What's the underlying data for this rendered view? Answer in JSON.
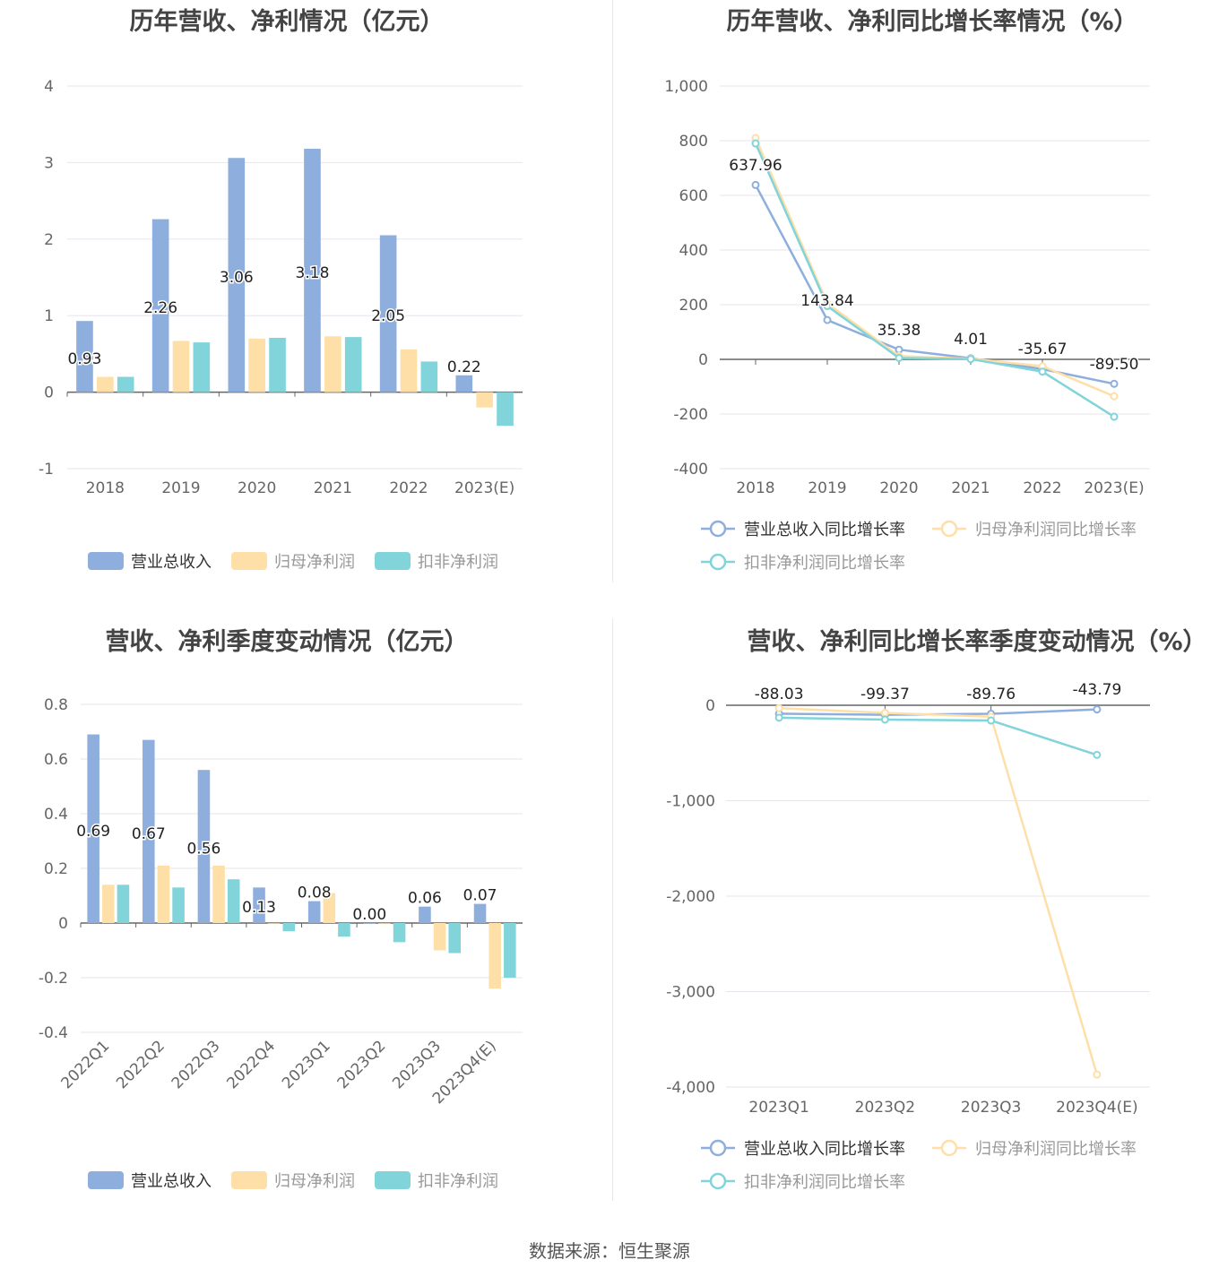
{
  "footer": {
    "source": "数据来源：恒生聚源"
  },
  "chart_data": [
    {
      "type": "bar",
      "title": "历年营收、净利情况（亿元）",
      "categories": [
        "2018",
        "2019",
        "2020",
        "2021",
        "2022",
        "2023(E)"
      ],
      "ylim": [
        -1,
        4
      ],
      "yticks": [
        -1,
        0,
        1,
        2,
        3,
        4
      ],
      "grid": true,
      "legend_position": "bottom",
      "series": [
        {
          "name": "营业总收入",
          "values": [
            0.93,
            2.26,
            3.06,
            3.18,
            2.05,
            0.22
          ],
          "color": "#8eaedd",
          "labeled": true
        },
        {
          "name": "归母净利润",
          "values": [
            0.2,
            0.67,
            0.7,
            0.73,
            0.56,
            -0.2
          ],
          "color": "#ffdfa8",
          "labeled": false
        },
        {
          "name": "扣非净利润",
          "values": [
            0.2,
            0.65,
            0.71,
            0.72,
            0.4,
            -0.44
          ],
          "color": "#80d4da",
          "labeled": false
        }
      ],
      "data_labels": [
        "0.93",
        "2.26",
        "3.06",
        "3.18",
        "2.05",
        "0.22"
      ]
    },
    {
      "type": "line",
      "title": "历年营收、净利同比增长率情况（%）",
      "categories": [
        "2018",
        "2019",
        "2020",
        "2021",
        "2022",
        "2023(E)"
      ],
      "ylim": [
        -400,
        1000
      ],
      "yticks": [
        -400,
        -200,
        0,
        200,
        400,
        600,
        800,
        1000
      ],
      "ytick_labels": [
        "-400",
        "-200",
        "0",
        "200",
        "400",
        "600",
        "800",
        "1,000"
      ],
      "grid": true,
      "legend_position": "bottom",
      "series": [
        {
          "name": "营业总收入同比增长率",
          "values": [
            637.96,
            143.84,
            35.38,
            4.01,
            -35.67,
            -89.5
          ],
          "color": "#8eaedd",
          "labeled": true
        },
        {
          "name": "归母净利润同比增长率",
          "values": [
            810,
            205,
            12,
            2,
            -25,
            -135
          ],
          "color": "#ffdfa8",
          "labeled": false
        },
        {
          "name": "扣非净利润同比增长率",
          "values": [
            790,
            195,
            5,
            1,
            -45,
            -210
          ],
          "color": "#80d4da",
          "labeled": false
        }
      ],
      "data_labels": [
        "637.96",
        "143.84",
        "35.38",
        "4.01",
        "-35.67",
        "-89.50"
      ]
    },
    {
      "type": "bar",
      "title": "营收、净利季度变动情况（亿元）",
      "categories": [
        "2022Q1",
        "2022Q2",
        "2022Q3",
        "2022Q4",
        "2023Q1",
        "2023Q2",
        "2023Q3",
        "2023Q4(E)"
      ],
      "ylim": [
        -0.4,
        0.8
      ],
      "yticks": [
        -0.4,
        -0.2,
        0,
        0.2,
        0.4,
        0.6,
        0.8
      ],
      "grid": true,
      "legend_position": "bottom",
      "series": [
        {
          "name": "营业总收入",
          "values": [
            0.69,
            0.67,
            0.56,
            0.13,
            0.08,
            0.0,
            0.06,
            0.07
          ],
          "color": "#8eaedd",
          "labeled": true
        },
        {
          "name": "归母净利润",
          "values": [
            0.14,
            0.21,
            0.21,
            0.0,
            0.11,
            0.0,
            -0.1,
            -0.24
          ],
          "color": "#ffdfa8",
          "labeled": false
        },
        {
          "name": "扣非净利润",
          "values": [
            0.14,
            0.13,
            0.16,
            -0.03,
            -0.05,
            -0.07,
            -0.11,
            -0.2
          ],
          "color": "#80d4da",
          "labeled": false
        }
      ],
      "data_labels": [
        "0.69",
        "0.67",
        "0.56",
        "0.13",
        "0.08",
        "0.00",
        "0.06",
        "0.07"
      ]
    },
    {
      "type": "line",
      "title": "营收、净利同比增长率季度变动情况（%）",
      "categories": [
        "2023Q1",
        "2023Q2",
        "2023Q3",
        "2023Q4(E)"
      ],
      "ylim": [
        -4000,
        0
      ],
      "yticks": [
        -4000,
        -3000,
        -2000,
        -1000,
        0
      ],
      "ytick_labels": [
        "-4,000",
        "-3,000",
        "-2,000",
        "-1,000",
        "0"
      ],
      "grid": true,
      "legend_position": "bottom",
      "series": [
        {
          "name": "营业总收入同比增长率",
          "values": [
            -88.03,
            -99.37,
            -89.76,
            -43.79
          ],
          "color": "#8eaedd",
          "labeled": true
        },
        {
          "name": "归母净利润同比增长率",
          "values": [
            -30,
            -80,
            -120,
            -3870
          ],
          "color": "#ffdfa8",
          "labeled": false
        },
        {
          "name": "扣非净利润同比增长率",
          "values": [
            -130,
            -150,
            -160,
            -520
          ],
          "color": "#80d4da",
          "labeled": false
        }
      ],
      "data_labels": [
        "-88.03",
        "-99.37",
        "-89.76",
        "-43.79"
      ]
    }
  ]
}
